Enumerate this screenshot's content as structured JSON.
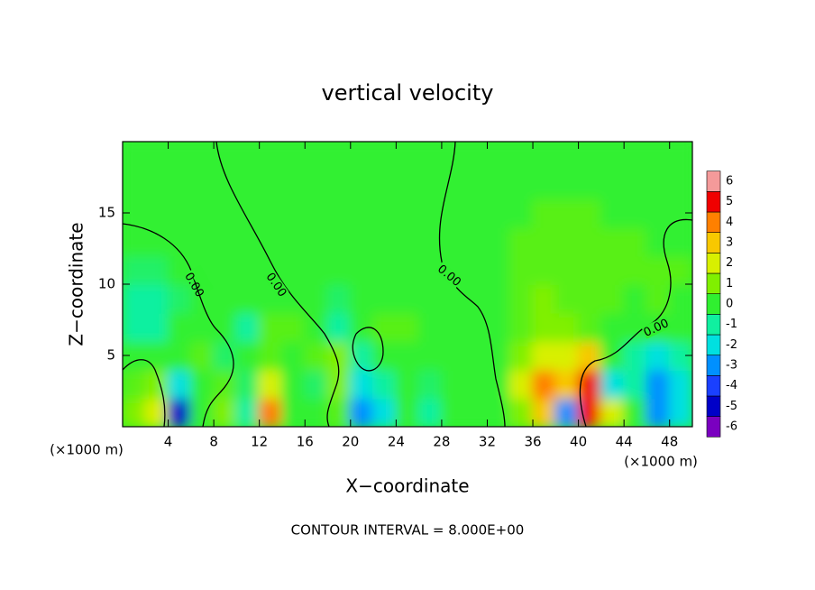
{
  "chart_data": {
    "type": "heatmap",
    "title": "vertical velocity",
    "x_label": "X−coordinate",
    "y_label": "Z−coordinate",
    "x_unit_left": "(×1000 m)",
    "x_unit_right": "(×1000 m)",
    "annotation": "CONTOUR INTERVAL = 8.000E+00",
    "contour_labels": [
      "0.00",
      "0.00",
      "0.00",
      "0.00"
    ],
    "xlim": [
      0,
      50
    ],
    "ylim": [
      0,
      20
    ],
    "xticks": [
      4,
      8,
      12,
      16,
      20,
      24,
      28,
      32,
      36,
      40,
      44,
      48
    ],
    "yticks": [
      5,
      10,
      15
    ],
    "x": [
      1,
      3,
      5,
      7,
      9,
      11,
      13,
      15,
      17,
      19,
      21,
      23,
      25,
      27,
      29,
      31,
      33,
      35,
      37,
      39,
      41,
      43,
      45,
      47,
      49
    ],
    "y": [
      1,
      3,
      5,
      7,
      9,
      11,
      13,
      15,
      17,
      19
    ],
    "z": [
      [
        1,
        2,
        -5,
        0,
        1,
        -1,
        4,
        0,
        0,
        0.5,
        -3,
        -2,
        0,
        -1,
        0,
        0,
        0,
        1,
        3,
        -3,
        5,
        2,
        0,
        -3,
        -2
      ],
      [
        0.5,
        1,
        -2,
        0,
        0.5,
        -0.5,
        2,
        0,
        -0.5,
        1,
        -2,
        -1,
        0,
        -0.5,
        0,
        0,
        0,
        2,
        4,
        3,
        5,
        -2,
        -1,
        -3,
        -2
      ],
      [
        0,
        0,
        0,
        0.5,
        -0.5,
        0,
        0.5,
        0,
        0.5,
        1,
        -1,
        0,
        0,
        0,
        0,
        0,
        0,
        1,
        2,
        2,
        3,
        0,
        -1,
        -2,
        -1
      ],
      [
        -1,
        -1,
        0,
        0,
        0,
        -1,
        0.5,
        0.5,
        0,
        -1,
        0,
        0.5,
        0.5,
        0,
        0,
        0,
        0,
        0.5,
        1,
        1,
        0.5,
        0,
        0,
        0,
        0
      ],
      [
        -1,
        -1,
        -0.5,
        0,
        0,
        0,
        0,
        0,
        0,
        -0.5,
        0,
        0,
        0,
        0,
        0,
        0,
        0,
        0.5,
        1,
        0.5,
        0.5,
        0.5,
        0,
        0.5,
        0
      ],
      [
        -0.5,
        -0.5,
        0,
        0,
        0,
        0,
        0,
        0,
        0,
        0,
        0,
        0,
        0,
        0,
        0,
        0,
        0,
        0.5,
        0.5,
        0.5,
        0.5,
        0.5,
        0.5,
        0.5,
        0.5
      ],
      [
        0,
        0,
        0,
        0,
        0,
        0,
        0,
        0,
        0,
        0,
        0,
        0,
        0,
        0,
        0,
        0,
        0,
        0.5,
        0.5,
        0.5,
        0.5,
        0.5,
        0.5,
        0,
        0
      ],
      [
        0,
        0,
        0,
        0,
        0,
        0,
        0,
        0,
        0,
        0,
        0,
        0,
        0,
        0,
        0,
        0,
        0,
        0,
        0.5,
        0.5,
        0.5,
        0,
        0,
        0,
        0
      ],
      [
        0,
        0,
        0,
        0,
        0,
        0,
        0,
        0,
        0,
        0,
        0,
        0,
        0,
        0,
        0,
        0,
        0,
        0,
        0,
        0,
        0,
        0,
        0,
        0,
        0
      ],
      [
        0,
        0,
        0,
        0,
        0,
        0,
        0,
        0,
        0,
        0,
        0,
        0,
        0,
        0,
        0,
        0,
        0,
        0,
        0,
        0,
        0,
        0,
        0,
        0,
        0
      ]
    ],
    "colorbar_levels": [
      -6,
      -5,
      -4,
      -3,
      -2,
      -1,
      0,
      1,
      2,
      3,
      4,
      5,
      6
    ],
    "colorbar_colors": [
      "#7a00c0",
      "#0000c8",
      "#1a40ff",
      "#0090ff",
      "#00e0e0",
      "#10f0a0",
      "#30f030",
      "#80f000",
      "#d8f000",
      "#f8c800",
      "#ff8000",
      "#f00000",
      "#f49a9a"
    ]
  }
}
